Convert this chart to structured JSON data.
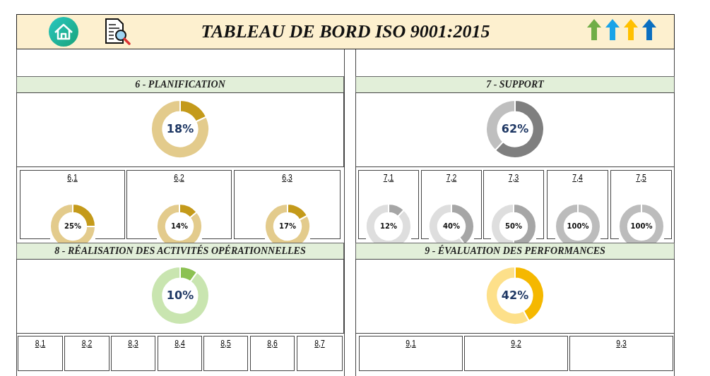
{
  "chart_data": [
    {
      "type": "other",
      "title": "TABLEAU DE BORD ISO 9001:2015"
    },
    {
      "type": "donut",
      "title": "6 - PLANIFICATION",
      "categories": [
        null,
        null
      ],
      "values": [
        18,
        82
      ],
      "colors": [
        "#c49a1a",
        "#e3cb8c"
      ],
      "annotations": [
        "18%"
      ]
    },
    {
      "type": "donut",
      "title": "6,1",
      "categories": [
        null,
        null
      ],
      "values": [
        25,
        75
      ],
      "colors": [
        "#c49a1a",
        "#e3cb8c"
      ],
      "annotations": [
        "25%"
      ]
    },
    {
      "type": "donut",
      "title": "6,2",
      "categories": [
        null,
        null
      ],
      "values": [
        14,
        86
      ],
      "colors": [
        "#c49a1a",
        "#e3cb8c"
      ],
      "annotations": [
        "14%"
      ]
    },
    {
      "type": "donut",
      "title": "6,3",
      "categories": [
        null,
        null
      ],
      "values": [
        17,
        83
      ],
      "colors": [
        "#c49a1a",
        "#e3cb8c"
      ],
      "annotations": [
        "17%"
      ]
    },
    {
      "type": "donut",
      "title": "7 - SUPPORT",
      "categories": [
        null,
        null
      ],
      "values": [
        62,
        38
      ],
      "colors": [
        "#7f7f7f",
        "#bfbfbf"
      ],
      "annotations": [
        "62%"
      ]
    },
    {
      "type": "donut",
      "title": "7,1",
      "categories": [
        null,
        null
      ],
      "values": [
        12,
        88
      ],
      "colors": [
        "#a6a6a6",
        "#dedede"
      ],
      "annotations": [
        "12%"
      ]
    },
    {
      "type": "donut",
      "title": "7,2",
      "categories": [
        null,
        null
      ],
      "values": [
        40,
        60
      ],
      "colors": [
        "#a6a6a6",
        "#dedede"
      ],
      "annotations": [
        "40%"
      ]
    },
    {
      "type": "donut",
      "title": "7,3",
      "categories": [
        null,
        null
      ],
      "values": [
        50,
        50
      ],
      "colors": [
        "#a6a6a6",
        "#dedede"
      ],
      "annotations": [
        "50%"
      ]
    },
    {
      "type": "donut",
      "title": "7,4",
      "categories": [
        null,
        null
      ],
      "values": [
        100,
        0
      ],
      "colors": [
        "#bcbcbc",
        "#dedede"
      ],
      "annotations": [
        "100%"
      ]
    },
    {
      "type": "donut",
      "title": "7,5",
      "categories": [
        null,
        null
      ],
      "values": [
        100,
        0
      ],
      "colors": [
        "#bcbcbc",
        "#dedede"
      ],
      "annotations": [
        "100%"
      ]
    },
    {
      "type": "donut",
      "title": "8 - RÉALISATION DES ACTIVITÉS OPÉRATIONNELLES",
      "categories": [
        null,
        null
      ],
      "values": [
        10,
        90
      ],
      "colors": [
        "#8cc152",
        "#c9e5b0"
      ],
      "annotations": [
        "10%"
      ]
    },
    {
      "type": "other",
      "title": "8,1"
    },
    {
      "type": "other",
      "title": "8,2"
    },
    {
      "type": "other",
      "title": "8,3"
    },
    {
      "type": "other",
      "title": "8,4"
    },
    {
      "type": "other",
      "title": "8,5"
    },
    {
      "type": "other",
      "title": "8,6"
    },
    {
      "type": "other",
      "title": "8,7"
    },
    {
      "type": "donut",
      "title": "9 - ÉVALUATION DES PERFORMANCES",
      "categories": [
        null,
        null
      ],
      "values": [
        42,
        58
      ],
      "colors": [
        "#f5b800",
        "#fde08a"
      ],
      "annotations": [
        "42%"
      ]
    },
    {
      "type": "other",
      "title": "9,1"
    },
    {
      "type": "other",
      "title": "9,2"
    },
    {
      "type": "other",
      "title": "9,3"
    }
  ]
}
